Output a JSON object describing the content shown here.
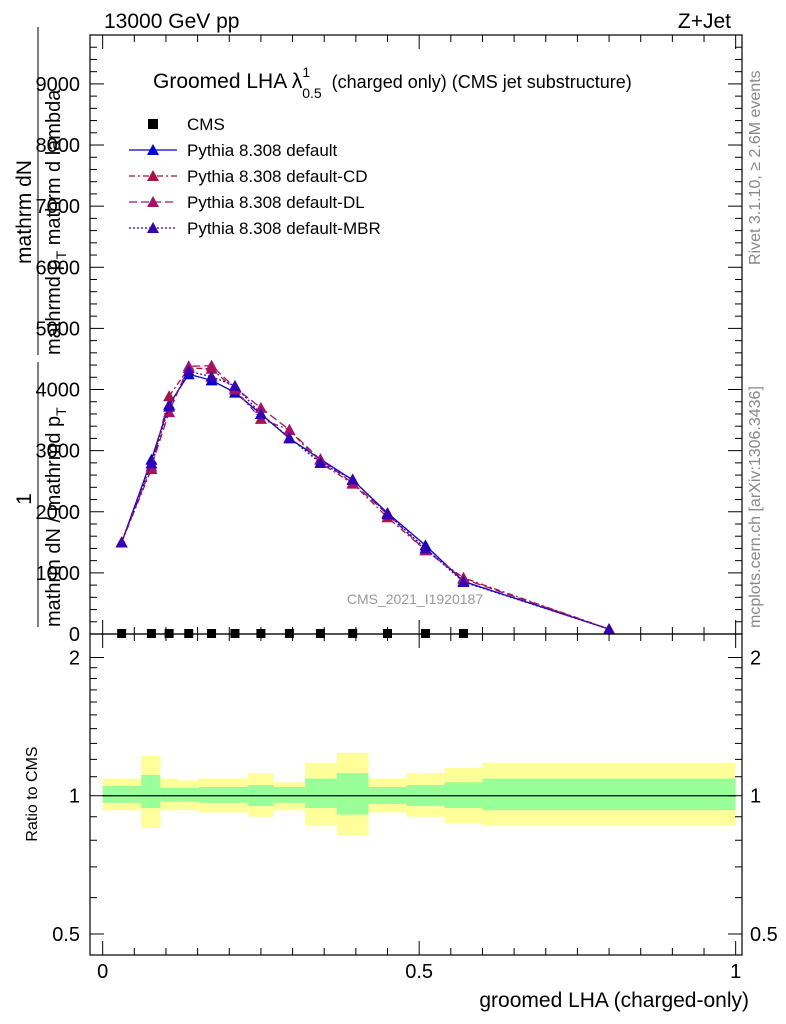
{
  "header": {
    "left": "13000 GeV pp",
    "right": "Z+Jet"
  },
  "side_labels": {
    "rivet": "Rivet 3.1.10, ≥ 2.6M events",
    "mcplots": "mcplots.cern.ch [arXiv:1306.3436]"
  },
  "colors": {
    "default": "#0000dd",
    "cd": "#aa1144",
    "dl": "#aa1166",
    "mbr": "#3300bb",
    "band_inner": "#99ff99",
    "band_outer": "#ffff99",
    "data": "#000000"
  },
  "chart_data": [
    {
      "type": "line",
      "title": "Groomed LHA λ",
      "title_sup": "1",
      "title_sub": "0.5",
      "title_suffix": "(charged only) (CMS jet substructure)",
      "watermark": "CMS_2021_I1920187",
      "ylabel_num": "1",
      "ylabel_den": "mathrm dN / mathrmd p",
      "ylabel_den_sub": "T",
      "ylabel_frac2_num": "mathrm dN",
      "ylabel_frac2_den": "mathrmd p",
      "ylabel_frac2_den_sub": "T",
      "ylabel_frac2_den_tail": " mathrm d lambda",
      "xlim": [
        -0.02,
        1.01
      ],
      "ylim": [
        0,
        9800
      ],
      "yticks": [
        {
          "v": 0,
          "label": "0"
        },
        {
          "v": 1000,
          "label": "1000"
        },
        {
          "v": 2000,
          "label": "2000"
        },
        {
          "v": 3000,
          "label": "3000"
        },
        {
          "v": 4000,
          "label": "4000"
        },
        {
          "v": 5000,
          "label": "5000"
        },
        {
          "v": 6000,
          "label": "6000"
        },
        {
          "v": 7000,
          "label": "7000"
        },
        {
          "v": 8000,
          "label": "8000"
        },
        {
          "v": 9000,
          "label": "9000"
        }
      ],
      "legend": "top-left",
      "cms_x": [
        0.03,
        0.077,
        0.105,
        0.136,
        0.172,
        0.209,
        0.25,
        0.295,
        0.344,
        0.395,
        0.45,
        0.51,
        0.57
      ],
      "series": [
        {
          "name": "CMS",
          "style": "data",
          "x": [
            0.03,
            0.077,
            0.105,
            0.136,
            0.172,
            0.209,
            0.25,
            0.295,
            0.344,
            0.395,
            0.45,
            0.51,
            0.57
          ],
          "y": [
            0,
            0,
            0,
            0,
            0,
            0,
            0,
            0,
            0,
            0,
            0,
            0,
            0
          ]
        },
        {
          "name": "Pythia 8.308 default",
          "style": "default",
          "x": [
            0.03,
            0.077,
            0.105,
            0.136,
            0.172,
            0.209,
            0.25,
            0.295,
            0.344,
            0.395,
            0.45,
            0.51,
            0.57,
            0.8
          ],
          "y": [
            1500,
            2850,
            3750,
            4250,
            4150,
            3950,
            3600,
            3200,
            2860,
            2520,
            1980,
            1450,
            860,
            80
          ]
        },
        {
          "name": "Pythia 8.308 default-CD",
          "style": "cd",
          "x": [
            0.03,
            0.077,
            0.105,
            0.136,
            0.172,
            0.209,
            0.25,
            0.295,
            0.344,
            0.395,
            0.45,
            0.51,
            0.57,
            0.8
          ],
          "y": [
            1500,
            2700,
            3890,
            4350,
            4340,
            4000,
            3520,
            3340,
            2800,
            2460,
            1910,
            1370,
            920,
            80
          ]
        },
        {
          "name": "Pythia 8.308 default-DL",
          "style": "dl",
          "x": [
            0.03,
            0.077,
            0.105,
            0.136,
            0.172,
            0.209,
            0.25,
            0.295,
            0.344,
            0.395,
            0.45,
            0.51,
            0.57,
            0.8
          ],
          "y": [
            1500,
            2740,
            3630,
            4380,
            4390,
            4030,
            3700,
            3340,
            2850,
            2470,
            1960,
            1370,
            900,
            80
          ]
        },
        {
          "name": "Pythia 8.308 default-MBR",
          "style": "mbr",
          "x": [
            0.03,
            0.077,
            0.105,
            0.136,
            0.172,
            0.209,
            0.25,
            0.295,
            0.344,
            0.395,
            0.45,
            0.51,
            0.57,
            0.8
          ],
          "y": [
            1500,
            2790,
            3720,
            4300,
            4210,
            4060,
            3600,
            3210,
            2800,
            2530,
            1960,
            1400,
            850,
            80
          ]
        }
      ]
    },
    {
      "type": "area",
      "ylabel": "Ratio to CMS",
      "xlabel": "groomed LHA (charged-only)",
      "xlim": [
        -0.02,
        1.01
      ],
      "ylim": [
        0.45,
        2.25
      ],
      "log_y": true,
      "yticks": [
        {
          "v": 0.5,
          "label": "0.5"
        },
        {
          "v": 1,
          "label": "1"
        },
        {
          "v": 2,
          "label": "2"
        }
      ],
      "xticks": [
        {
          "v": 0,
          "label": "0"
        },
        {
          "v": 0.5,
          "label": "0.5"
        },
        {
          "v": 1,
          "label": "1"
        }
      ],
      "bins": [
        {
          "lo": 0.0,
          "hi": 0.061,
          "inner": [
            0.965,
            1.05
          ],
          "outer": [
            0.93,
            1.09
          ]
        },
        {
          "lo": 0.061,
          "hi": 0.091,
          "inner": [
            0.94,
            1.11
          ],
          "outer": [
            0.85,
            1.22
          ]
        },
        {
          "lo": 0.091,
          "hi": 0.12,
          "inner": [
            0.97,
            1.04
          ],
          "outer": [
            0.93,
            1.09
          ]
        },
        {
          "lo": 0.12,
          "hi": 0.152,
          "inner": [
            0.97,
            1.04
          ],
          "outer": [
            0.93,
            1.08
          ]
        },
        {
          "lo": 0.152,
          "hi": 0.19,
          "inner": [
            0.965,
            1.045
          ],
          "outer": [
            0.92,
            1.09
          ]
        },
        {
          "lo": 0.19,
          "hi": 0.23,
          "inner": [
            0.965,
            1.045
          ],
          "outer": [
            0.92,
            1.09
          ]
        },
        {
          "lo": 0.23,
          "hi": 0.27,
          "inner": [
            0.95,
            1.055
          ],
          "outer": [
            0.9,
            1.12
          ]
        },
        {
          "lo": 0.27,
          "hi": 0.32,
          "inner": [
            0.965,
            1.045
          ],
          "outer": [
            0.93,
            1.07
          ]
        },
        {
          "lo": 0.32,
          "hi": 0.37,
          "inner": [
            0.94,
            1.09
          ],
          "outer": [
            0.86,
            1.18
          ]
        },
        {
          "lo": 0.37,
          "hi": 0.42,
          "inner": [
            0.91,
            1.12
          ],
          "outer": [
            0.82,
            1.24
          ]
        },
        {
          "lo": 0.42,
          "hi": 0.48,
          "inner": [
            0.96,
            1.045
          ],
          "outer": [
            0.92,
            1.09
          ]
        },
        {
          "lo": 0.48,
          "hi": 0.54,
          "inner": [
            0.95,
            1.055
          ],
          "outer": [
            0.9,
            1.12
          ]
        },
        {
          "lo": 0.54,
          "hi": 0.6,
          "inner": [
            0.94,
            1.07
          ],
          "outer": [
            0.87,
            1.15
          ]
        },
        {
          "lo": 0.6,
          "hi": 1.0,
          "inner": [
            0.93,
            1.09
          ],
          "outer": [
            0.86,
            1.18
          ]
        }
      ],
      "reference_line": 1
    }
  ]
}
